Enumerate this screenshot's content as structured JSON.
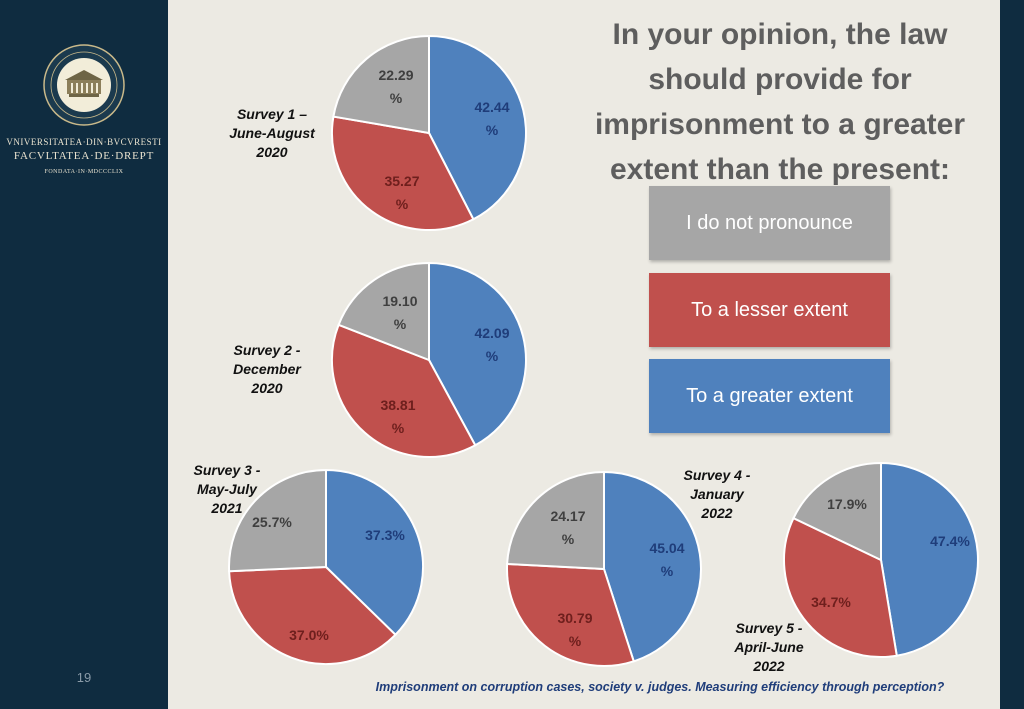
{
  "sidebar": {
    "university_line": "VNIVERSITATEA·DIN·BVCVRESTI",
    "faculty_line": "FACVLTATEA·DE·DREPT",
    "founded_line": "FONDATA·IN·MDCCCLIX",
    "page_number": "19"
  },
  "title": "In your opinion, the law should provide for imprisonment to a greater extent than the present:",
  "legend": [
    {
      "label": "I do not pronounce",
      "color": "#A6A6A6"
    },
    {
      "label": "To a lesser extent",
      "color": "#C0504D"
    },
    {
      "label": "To a greater extent",
      "color": "#4F81BD"
    }
  ],
  "footer": "Imprisonment on corruption cases, society v. judges. Measuring efficiency through perception?",
  "colors": {
    "greater": "#4F81BD",
    "lesser": "#C0504D",
    "none": "#A6A6A6"
  },
  "chart_data": [
    {
      "type": "pie",
      "title": "Survey 1 – June-August 2020",
      "categories": [
        "To a greater extent",
        "To a lesser extent",
        "I do not pronounce"
      ],
      "values": [
        42.44,
        35.27,
        22.29
      ],
      "labels": [
        "42.44 %",
        "35.27 %",
        "22.29 %"
      ]
    },
    {
      "type": "pie",
      "title": "Survey 2 - December 2020",
      "categories": [
        "To a greater extent",
        "To a lesser extent",
        "I do not pronounce"
      ],
      "values": [
        42.09,
        38.81,
        19.1
      ],
      "labels": [
        "42.09 %",
        "38.81 %",
        "19.10 %"
      ]
    },
    {
      "type": "pie",
      "title": "Survey 3 - May-July 2021",
      "categories": [
        "To a greater extent",
        "To a lesser extent",
        "I do not pronounce"
      ],
      "values": [
        37.3,
        37.0,
        25.7
      ],
      "labels": [
        "37.3%",
        "37.0%",
        "25.7%"
      ]
    },
    {
      "type": "pie",
      "title": "Survey 4 - January 2022",
      "categories": [
        "To a greater extent",
        "To a lesser extent",
        "I do not pronounce"
      ],
      "values": [
        45.04,
        30.79,
        24.17
      ],
      "labels": [
        "45.04 %",
        "30.79 %",
        "24.17 %"
      ]
    },
    {
      "type": "pie",
      "title": "Survey 5 - April-June 2022",
      "categories": [
        "To a greater extent",
        "To a lesser extent",
        "I do not pronounce"
      ],
      "values": [
        47.4,
        34.7,
        17.9
      ],
      "labels": [
        "47.4%",
        "34.7%",
        "17.9%"
      ]
    }
  ]
}
